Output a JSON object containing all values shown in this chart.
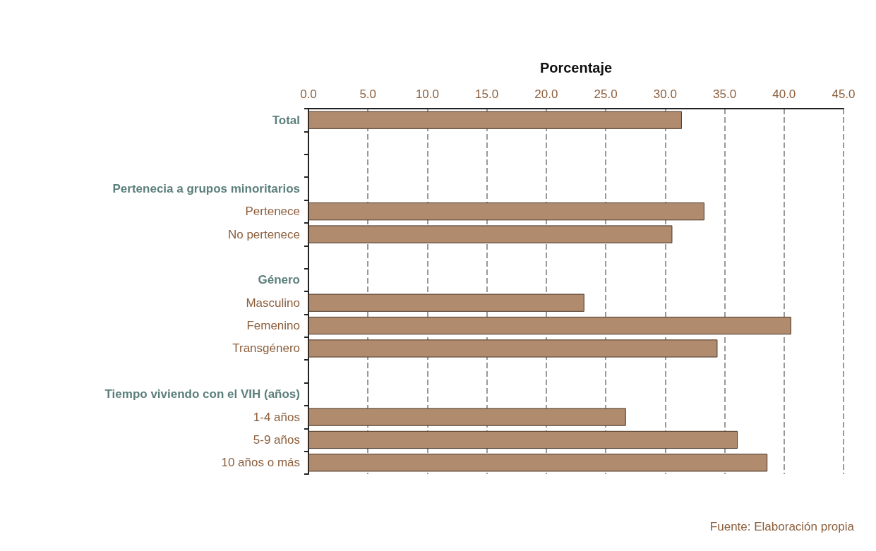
{
  "chart_data": {
    "type": "bar",
    "orientation": "horizontal",
    "xlabel": "Porcentaje",
    "categories": [
      "Total",
      null,
      null,
      "Pertenecia a grupos minoritarios",
      "Pertenece",
      "No pertenece",
      null,
      "Género",
      "Masculino",
      "Femenino",
      "Transgénero",
      null,
      "Tiempo viviendo con el VIH (años)",
      "1-4 años",
      "5-9 años",
      "10 años o más"
    ],
    "values": [
      31.4,
      null,
      null,
      null,
      33.3,
      30.6,
      null,
      null,
      23.2,
      40.6,
      34.4,
      null,
      null,
      26.7,
      36.1,
      38.6
    ],
    "color": "#b08b6e",
    "xlim": [
      0,
      45
    ],
    "xticks": [
      {
        "value": 0,
        "label": "0.0"
      },
      {
        "value": 5,
        "label": "5.0"
      },
      {
        "value": 10,
        "label": "10.0"
      },
      {
        "value": 15,
        "label": "15.0"
      },
      {
        "value": 20,
        "label": "20.0"
      },
      {
        "value": 25,
        "label": "25.0"
      },
      {
        "value": 30,
        "label": "30.0"
      },
      {
        "value": 35,
        "label": "35.0"
      },
      {
        "value": 40,
        "label": "40.0"
      },
      {
        "value": 45,
        "label": "45.0"
      }
    ],
    "grid": "x",
    "annotations": [
      "Fuente: Elaboración propia"
    ]
  }
}
